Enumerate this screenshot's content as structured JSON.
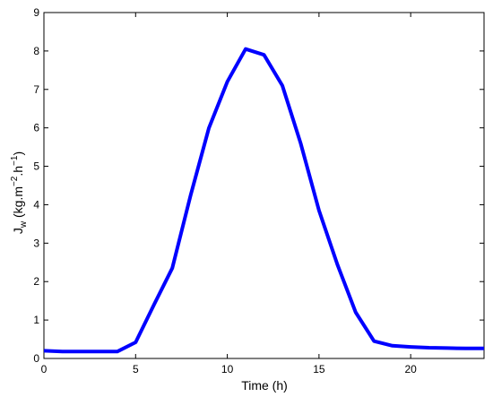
{
  "chart_data": {
    "type": "line",
    "xlabel": "Time (h)",
    "ylabel": {
      "main": "J",
      "sub": "w",
      "unit_open": " (kg.m",
      "exp1": "−2",
      "mid": ".h",
      "exp2": "−1",
      "close": ")"
    },
    "xlim": [
      0,
      24
    ],
    "ylim": [
      0,
      9
    ],
    "xticks": [
      0,
      5,
      10,
      15,
      20
    ],
    "yticks": [
      0,
      1,
      2,
      3,
      4,
      5,
      6,
      7,
      8,
      9
    ],
    "grid": false,
    "legend": "none",
    "series": [
      {
        "color": "#0000ff",
        "x": [
          0,
          1,
          2,
          3,
          4,
          5,
          6,
          7,
          8,
          9,
          10,
          11,
          12,
          13,
          14,
          15,
          16,
          17,
          18,
          19,
          20,
          21,
          22,
          23,
          24
        ],
        "y": [
          0.2,
          0.18,
          0.18,
          0.18,
          0.18,
          0.42,
          1.4,
          2.35,
          4.25,
          6.0,
          7.2,
          8.05,
          7.9,
          7.1,
          5.6,
          3.85,
          2.45,
          1.2,
          0.45,
          0.33,
          0.3,
          0.28,
          0.27,
          0.26,
          0.26
        ]
      }
    ]
  }
}
